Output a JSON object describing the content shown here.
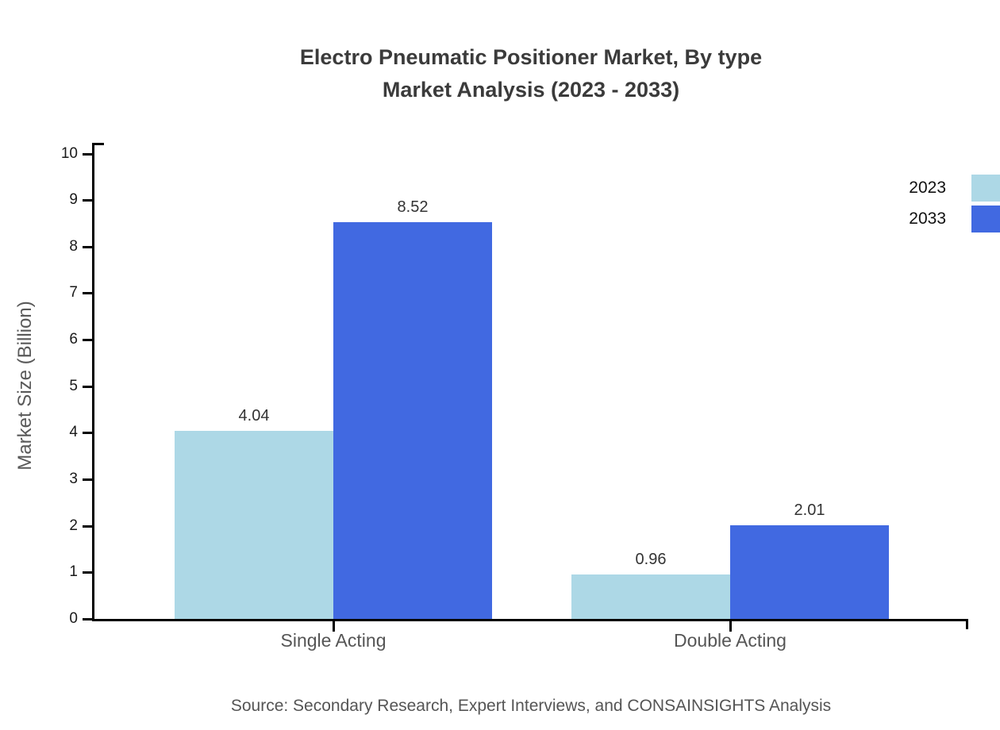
{
  "title": {
    "line1": "Electro Pneumatic Positioner Market, By type",
    "line2": "Market Analysis (2023 - 2033)"
  },
  "source": "Source: Secondary Research, Expert Interviews, and CONSAINSIGHTS Analysis",
  "chart_data": {
    "type": "bar",
    "categories": [
      "Single Acting",
      "Double Acting"
    ],
    "series": [
      {
        "name": "2023",
        "color": "#ADD8E6",
        "values": [
          4.04,
          0.96
        ]
      },
      {
        "name": "2033",
        "color": "#4169E1",
        "values": [
          8.52,
          2.01
        ]
      }
    ],
    "value_labels": [
      "4.04",
      "8.52",
      "0.96",
      "2.01"
    ],
    "title": "Electro Pneumatic Positioner Market, By type Market Analysis (2023 - 2033)",
    "xlabel": "",
    "ylabel": "Market Size (Billion)",
    "ylim": [
      0,
      10
    ],
    "yticks": [
      0,
      1,
      2,
      3,
      4,
      5,
      6,
      7,
      8,
      9,
      10
    ],
    "grid": false,
    "legend_position": "top-right",
    "legend_entries": [
      "2023",
      "2033"
    ]
  },
  "colors": {
    "series_2023": "#ADD8E6",
    "series_2033": "#4169E1",
    "title_text": "#3b3b3b",
    "axis": "#000000",
    "tick_label": "#1a1a1a",
    "category_label": "#555555",
    "axis_label": "#595959",
    "source_text": "#555555",
    "background": "#ffffff"
  }
}
